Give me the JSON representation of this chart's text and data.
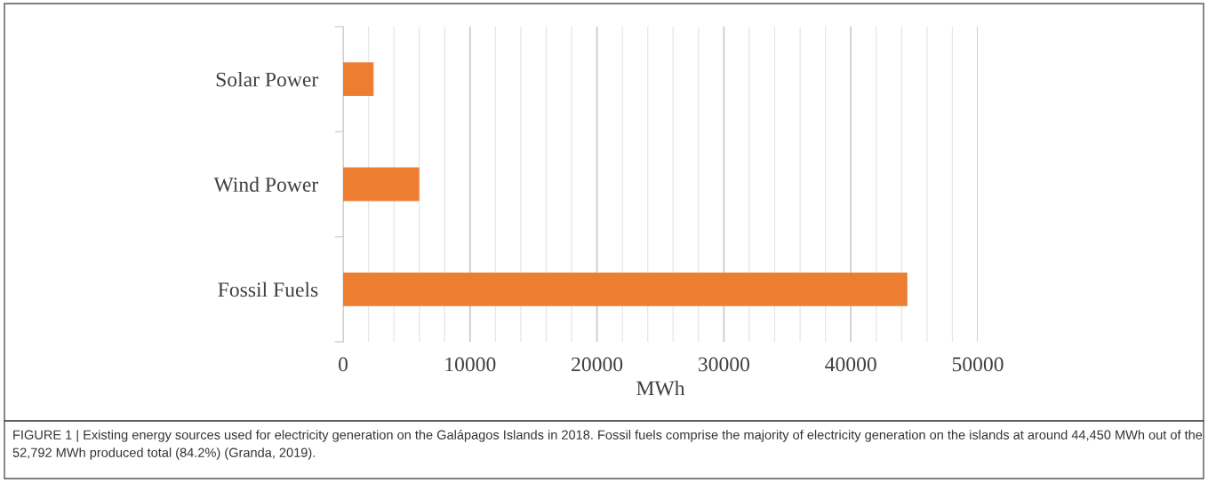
{
  "chart_data": {
    "type": "bar",
    "orientation": "horizontal",
    "categories": [
      "Solar Power",
      "Wind Power",
      "Fossil Fuels"
    ],
    "values": [
      2400,
      6000,
      44450
    ],
    "color": "#ed7d31",
    "xlabel": "MWh",
    "xlim": [
      0,
      50000
    ],
    "xticks": [
      0,
      {
        "value": 2000,
        "label": null
      },
      {
        "value": 4000,
        "label": null
      },
      {
        "value": 6000,
        "label": null
      },
      {
        "value": 8000,
        "label": null
      },
      10000,
      {
        "value": 12000,
        "label": null
      },
      {
        "value": 14000,
        "label": null
      },
      {
        "value": 16000,
        "label": null
      },
      {
        "value": 18000,
        "label": null
      },
      20000,
      {
        "value": 22000,
        "label": null
      },
      {
        "value": 24000,
        "label": null
      },
      {
        "value": 26000,
        "label": null
      },
      {
        "value": 28000,
        "label": null
      },
      30000,
      {
        "value": 32000,
        "label": null
      },
      {
        "value": 34000,
        "label": null
      },
      {
        "value": 36000,
        "label": null
      },
      {
        "value": 38000,
        "label": null
      },
      40000,
      {
        "value": 42000,
        "label": null
      },
      {
        "value": 44000,
        "label": null
      },
      {
        "value": 46000,
        "label": null
      },
      {
        "value": 48000,
        "label": null
      },
      50000
    ],
    "grid": "x",
    "annotations": [
      "FIGURE 1 | Existing energy sources used for electricity generation on the Galápagos Islands in 2018. Fossil fuels comprise the majority of electricity generation on the islands at around 44,450 MWh out of the 52,792 MWh produced total (84.2%) (Granda, 2019)."
    ]
  }
}
